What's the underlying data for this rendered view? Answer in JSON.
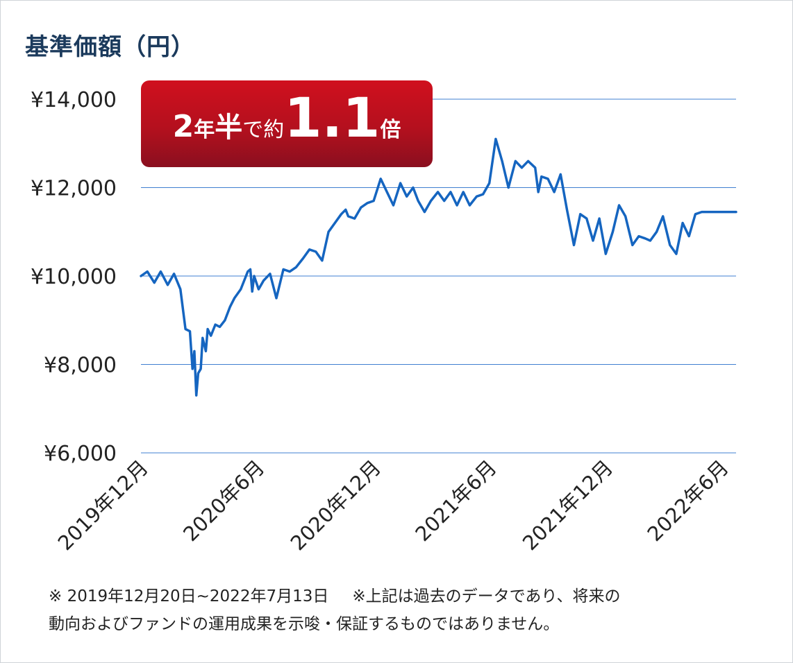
{
  "page": {
    "title": "基準価額（円）"
  },
  "badge": {
    "part1": "2",
    "part2": "年",
    "part3": "半",
    "part4": "で約",
    "part5": "1.1",
    "part6": "倍"
  },
  "notes": {
    "line1a": "※ 2019年12月20日~2022年7月13日",
    "line1b": "※上記は過去のデータであり、将来の",
    "line2": "動向およびファンドの運用成果を示唆・保証するものではありません。"
  },
  "colors": {
    "line": "#1565c0",
    "grid": "#3f7fd0",
    "badge": "#c8102e",
    "title": "#1b3a5c"
  },
  "chart_data": {
    "type": "line",
    "title": "基準価額（円）",
    "xlabel": "",
    "ylabel": "",
    "ylim": [
      6000,
      14000
    ],
    "grid": true,
    "y_ticks": [
      14000,
      12000,
      10000,
      8000,
      6000
    ],
    "y_tick_labels": [
      "¥14,000",
      "¥12,000",
      "¥10,000",
      "¥8,000",
      "¥6,000"
    ],
    "x_tick_labels": [
      "2019年12月",
      "2020年6月",
      "2020年12月",
      "2021年6月",
      "2021年12月",
      "2022年6月"
    ],
    "x_tick_dates": [
      "2019-12-20",
      "2020-06-20",
      "2020-12-20",
      "2021-06-20",
      "2021-12-20",
      "2022-06-20"
    ],
    "series": [
      {
        "x": [
          "2019-12-20",
          "2019-12-30",
          "2020-01-10",
          "2020-01-20",
          "2020-01-31",
          "2020-02-10",
          "2020-02-20",
          "2020-02-28",
          "2020-03-06",
          "2020-03-10",
          "2020-03-13",
          "2020-03-16",
          "2020-03-19",
          "2020-03-23",
          "2020-03-26",
          "2020-03-31",
          "2020-04-03",
          "2020-04-08",
          "2020-04-15",
          "2020-04-22",
          "2020-04-30",
          "2020-05-08",
          "2020-05-15",
          "2020-05-25",
          "2020-06-05",
          "2020-06-09",
          "2020-06-12",
          "2020-06-15",
          "2020-06-22",
          "2020-06-30",
          "2020-07-10",
          "2020-07-20",
          "2020-07-31",
          "2020-08-10",
          "2020-08-20",
          "2020-08-31",
          "2020-09-10",
          "2020-09-20",
          "2020-09-30",
          "2020-10-10",
          "2020-10-20",
          "2020-10-30",
          "2020-11-06",
          "2020-11-10",
          "2020-11-20",
          "2020-11-30",
          "2020-12-10",
          "2020-12-20",
          "2020-12-31",
          "2021-01-10",
          "2021-01-20",
          "2021-01-31",
          "2021-02-10",
          "2021-02-20",
          "2021-02-28",
          "2021-03-10",
          "2021-03-20",
          "2021-03-31",
          "2021-04-10",
          "2021-04-20",
          "2021-04-30",
          "2021-05-10",
          "2021-05-20",
          "2021-05-31",
          "2021-06-10",
          "2021-06-20",
          "2021-06-30",
          "2021-07-10",
          "2021-07-20",
          "2021-07-31",
          "2021-08-10",
          "2021-08-20",
          "2021-08-31",
          "2021-09-05",
          "2021-09-10",
          "2021-09-20",
          "2021-09-30",
          "2021-10-10",
          "2021-10-20",
          "2021-10-31",
          "2021-11-10",
          "2021-11-20",
          "2021-11-30",
          "2021-12-10",
          "2021-12-20",
          "2021-12-31",
          "2022-01-10",
          "2022-01-20",
          "2022-01-31",
          "2022-02-10",
          "2022-02-20",
          "2022-02-28",
          "2022-03-10",
          "2022-03-20",
          "2022-03-31",
          "2022-04-10",
          "2022-04-20",
          "2022-04-30",
          "2022-05-10",
          "2022-05-20",
          "2022-05-31",
          "2022-06-10",
          "2022-06-20",
          "2022-06-30",
          "2022-07-05",
          "2022-07-13"
        ],
        "values": [
          10000,
          10100,
          9850,
          10100,
          9800,
          10050,
          9700,
          8800,
          8750,
          7900,
          8300,
          7300,
          7800,
          7900,
          8600,
          8300,
          8800,
          8650,
          8900,
          8850,
          9000,
          9300,
          9500,
          9700,
          10100,
          10150,
          9650,
          10000,
          9700,
          9900,
          10050,
          9500,
          10150,
          10100,
          10200,
          10400,
          10600,
          10550,
          10350,
          11000,
          11200,
          11400,
          11500,
          11350,
          11300,
          11550,
          11650,
          11700,
          12200,
          11900,
          11600,
          12100,
          11800,
          12000,
          11700,
          11450,
          11700,
          11900,
          11700,
          11900,
          11600,
          11900,
          11600,
          11800,
          11850,
          12100,
          13100,
          12600,
          12000,
          12600,
          12450,
          12600,
          12450,
          11900,
          12250,
          12200,
          11900,
          12300,
          11500,
          10700,
          11400,
          11300,
          10800,
          11300,
          10500,
          11000,
          11600,
          11350,
          10700,
          10900,
          10850,
          10800,
          11000,
          11350,
          10700,
          10500,
          11200,
          10900,
          11400,
          11450,
          11450,
          11450,
          11450,
          11450,
          11450,
          11450
        ],
        "name": ""
      }
    ]
  }
}
